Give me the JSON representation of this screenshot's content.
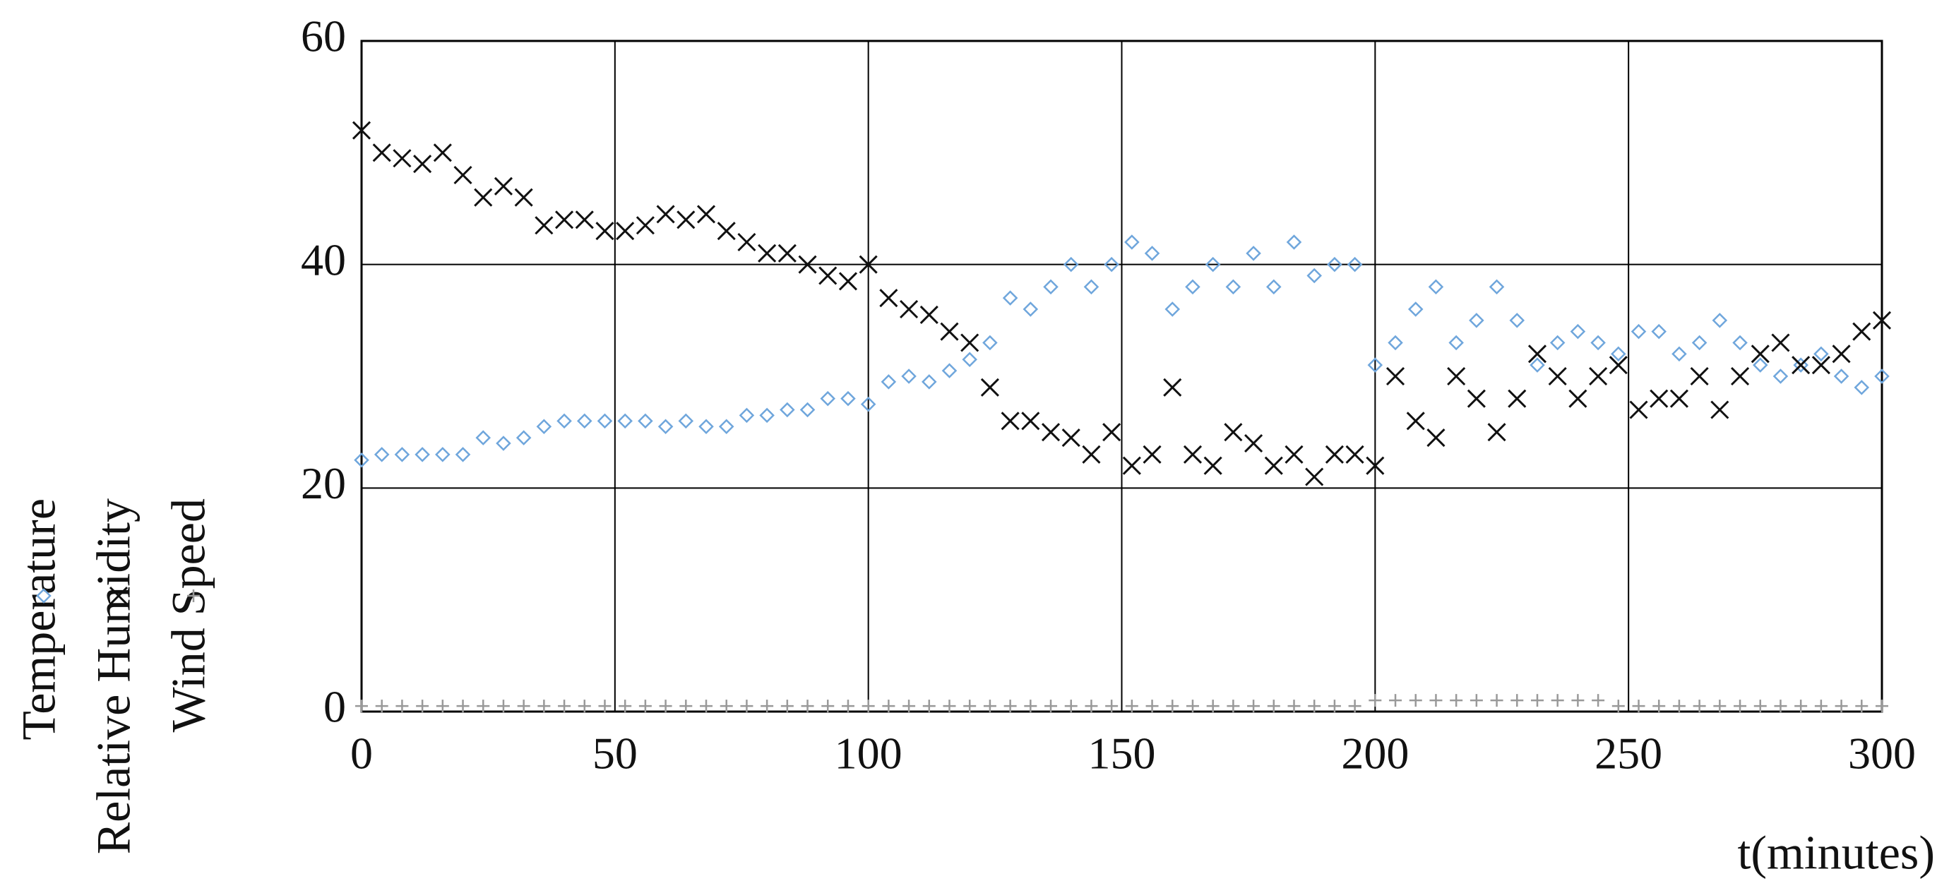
{
  "chart_data": {
    "type": "scatter",
    "xlabel": "t(minutes)",
    "x": [
      0,
      4,
      8,
      12,
      16,
      20,
      24,
      28,
      32,
      36,
      40,
      44,
      48,
      52,
      56,
      60,
      64,
      68,
      72,
      76,
      80,
      84,
      88,
      92,
      96,
      100,
      104,
      108,
      112,
      116,
      120,
      124,
      128,
      132,
      136,
      140,
      144,
      148,
      152,
      156,
      160,
      164,
      168,
      172,
      176,
      180,
      184,
      188,
      192,
      196,
      200,
      204,
      208,
      212,
      216,
      220,
      224,
      228,
      232,
      236,
      240,
      244,
      248,
      252,
      256,
      260,
      264,
      268,
      272,
      276,
      280,
      284,
      288,
      292,
      296,
      300
    ],
    "series": [
      {
        "name": "Temperature",
        "color": "#6fa6dc",
        "marker": "diamond",
        "values": [
          22.5,
          23,
          23,
          23,
          23,
          23,
          24.5,
          24,
          24.5,
          25.5,
          26,
          26,
          26,
          26,
          26,
          25.5,
          26,
          25.5,
          25.5,
          26.5,
          26.5,
          27,
          27,
          28,
          28,
          27.5,
          29.5,
          30,
          29.5,
          30.5,
          31.5,
          33,
          37,
          36,
          38,
          40,
          38,
          40,
          42,
          41,
          36,
          38,
          40,
          38,
          41,
          38,
          42,
          39,
          40,
          40,
          31,
          33,
          36,
          38,
          33,
          35,
          38,
          35,
          31,
          33,
          34,
          33,
          32,
          34,
          34,
          32,
          33,
          35,
          33,
          31,
          30,
          31,
          32,
          30,
          29,
          30
        ]
      },
      {
        "name": "Relative Humidity",
        "color": "#111111",
        "marker": "x",
        "values": [
          52,
          50,
          49.5,
          49,
          50,
          48,
          46,
          47,
          46,
          43.5,
          44,
          44,
          43,
          43,
          43.5,
          44.5,
          44,
          44.5,
          43,
          42,
          41,
          41,
          40,
          39,
          38.5,
          40,
          37,
          36,
          35.5,
          34,
          33,
          29,
          26,
          26,
          25,
          24.5,
          23,
          25,
          22,
          23,
          29,
          23,
          22,
          25,
          24,
          22,
          23,
          21,
          23,
          23,
          22,
          30,
          26,
          24.5,
          30,
          28,
          25,
          28,
          32,
          30,
          28,
          30,
          31,
          27,
          28,
          28,
          30,
          27,
          30,
          32,
          33,
          31,
          31,
          32,
          34,
          35
        ]
      },
      {
        "name": "Wind Speed",
        "color": "#999999",
        "marker": "plus",
        "values": [
          0.5,
          0.5,
          0.5,
          0.5,
          0.5,
          0.5,
          0.5,
          0.5,
          0.5,
          0.5,
          0.5,
          0.5,
          0.5,
          0.5,
          0.5,
          0.5,
          0.5,
          0.5,
          0.5,
          0.5,
          0.5,
          0.5,
          0.5,
          0.5,
          0.5,
          0.5,
          0.5,
          0.5,
          0.5,
          0.5,
          0.5,
          0.5,
          0.5,
          0.5,
          0.5,
          0.5,
          0.5,
          0.5,
          0.5,
          0.5,
          0.5,
          0.5,
          0.5,
          0.5,
          0.5,
          0.5,
          0.5,
          0.5,
          0.5,
          0.5,
          1,
          1,
          1,
          1,
          1,
          1,
          1,
          1,
          1,
          1,
          1,
          1,
          0.5,
          0.5,
          0.5,
          0.5,
          0.5,
          0.5,
          0.5,
          0.5,
          0.5,
          0.5,
          0.5,
          0.5,
          0.5,
          0.5
        ]
      }
    ],
    "xlim": [
      0,
      300
    ],
    "xticks": [
      0,
      50,
      100,
      150,
      200,
      250,
      300
    ],
    "ylim": [
      0,
      60
    ],
    "yticks": [
      0,
      20,
      40,
      60
    ],
    "grid": true,
    "legend": "left"
  }
}
